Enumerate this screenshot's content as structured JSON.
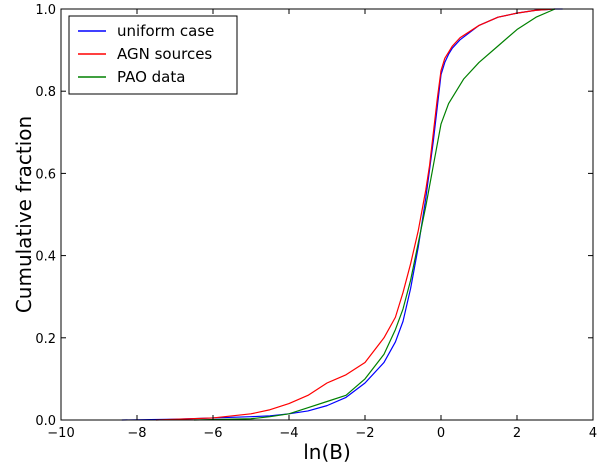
{
  "chart_data": {
    "type": "line",
    "xlabel": "ln(B)",
    "ylabel": "Cumulative fraction",
    "xlim": [
      -10,
      4
    ],
    "ylim": [
      0.0,
      1.0
    ],
    "xticks": [
      -10,
      -8,
      -6,
      -4,
      -2,
      0,
      2,
      4
    ],
    "xtick_labels": [
      "−10",
      "−8",
      "−6",
      "−4",
      "−2",
      "0",
      "2",
      "4"
    ],
    "yticks": [
      0.0,
      0.2,
      0.4,
      0.6,
      0.8,
      1.0
    ],
    "ytick_labels": [
      "0.0",
      "0.2",
      "0.4",
      "0.6",
      "0.8",
      "1.0"
    ],
    "grid": false,
    "legend_position": "top-left",
    "series": [
      {
        "name": "uniform case",
        "color": "#0000ff",
        "x": [
          -8.4,
          -7,
          -6,
          -5,
          -4.5,
          -4,
          -3.5,
          -3,
          -2.5,
          -2,
          -1.5,
          -1.2,
          -1,
          -0.8,
          -0.6,
          -0.4,
          -0.3,
          -0.2,
          -0.1,
          0,
          0.1,
          0.2,
          0.3,
          0.5,
          1,
          1.5,
          2,
          2.5,
          3,
          3.2
        ],
        "y": [
          0,
          0.002,
          0.005,
          0.008,
          0.01,
          0.015,
          0.022,
          0.035,
          0.055,
          0.09,
          0.14,
          0.19,
          0.24,
          0.32,
          0.42,
          0.54,
          0.61,
          0.68,
          0.76,
          0.84,
          0.87,
          0.89,
          0.905,
          0.925,
          0.96,
          0.98,
          0.99,
          0.997,
          1.0,
          1.0
        ]
      },
      {
        "name": "AGN sources",
        "color": "#ff0000",
        "x": [
          -7.5,
          -6,
          -5,
          -4.5,
          -4,
          -3.5,
          -3,
          -2.5,
          -2,
          -1.5,
          -1.2,
          -1,
          -0.8,
          -0.6,
          -0.4,
          -0.3,
          -0.2,
          -0.1,
          0,
          0.1,
          0.2,
          0.3,
          0.5,
          1,
          1.5,
          2,
          2.5,
          3
        ],
        "y": [
          0,
          0.005,
          0.015,
          0.025,
          0.04,
          0.06,
          0.09,
          0.11,
          0.14,
          0.2,
          0.25,
          0.31,
          0.38,
          0.46,
          0.56,
          0.62,
          0.7,
          0.78,
          0.85,
          0.88,
          0.895,
          0.91,
          0.93,
          0.96,
          0.98,
          0.99,
          0.997,
          1.0
        ]
      },
      {
        "name": "PAO data",
        "color": "#008000",
        "x": [
          -6.5,
          -5,
          -4.5,
          -4,
          -3.5,
          -3,
          -2.5,
          -2,
          -1.5,
          -1.2,
          -1,
          -0.8,
          -0.6,
          -0.4,
          -0.2,
          0,
          0.2,
          0.4,
          0.6,
          1,
          1.5,
          2,
          2.5,
          3
        ],
        "y": [
          0,
          0.003,
          0.008,
          0.015,
          0.03,
          0.045,
          0.06,
          0.1,
          0.16,
          0.22,
          0.27,
          0.34,
          0.43,
          0.52,
          0.62,
          0.72,
          0.77,
          0.8,
          0.83,
          0.87,
          0.91,
          0.95,
          0.98,
          1.0
        ]
      }
    ]
  }
}
